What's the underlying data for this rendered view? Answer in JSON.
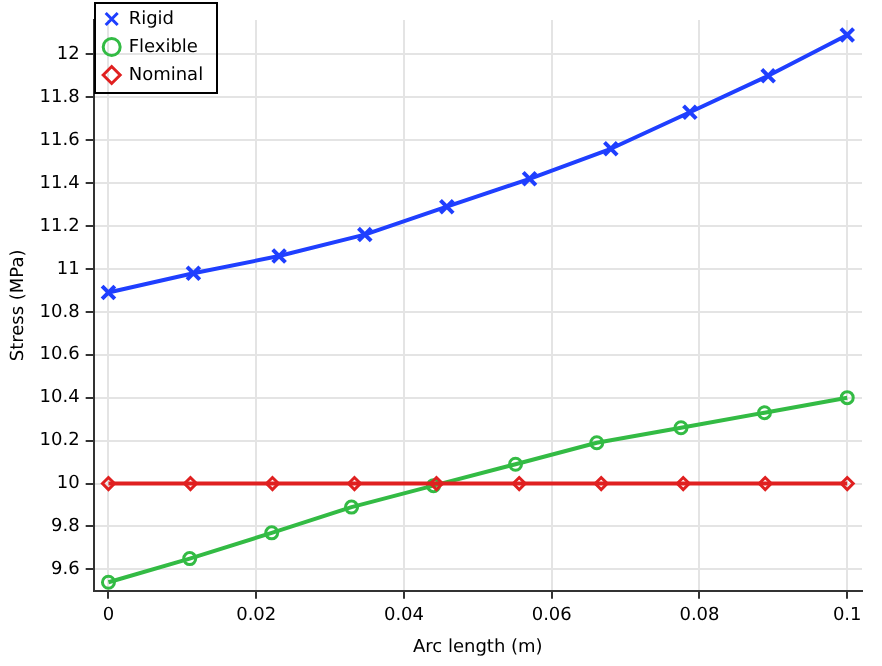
{
  "chart_data": {
    "type": "line",
    "xlabel": "Arc length (m)",
    "ylabel": "Stress (MPa)",
    "xlim": [
      -0.002,
      0.102
    ],
    "xticks": [
      0,
      0.02,
      0.04,
      0.06,
      0.08,
      0.1
    ],
    "ylim": [
      9.5,
      12.16
    ],
    "yticks": [
      9.6,
      9.8,
      10,
      10.2,
      10.4,
      10.6,
      10.8,
      11,
      11.2,
      11.4,
      11.6,
      11.8,
      12
    ],
    "grid": true,
    "legend": "top left",
    "line_style": "solid",
    "series": [
      {
        "name": "Rigid",
        "color": "#1f3fff",
        "marker": "cross",
        "x": [
          0,
          0.0115,
          0.0231,
          0.0347,
          0.0458,
          0.057,
          0.068,
          0.0787,
          0.0893,
          0.1
        ],
        "values": [
          10.89,
          10.98,
          11.06,
          11.16,
          11.29,
          11.42,
          11.56,
          11.73,
          11.9,
          12.09
        ]
      },
      {
        "name": "Flexible",
        "color": "#33bb44",
        "marker": "circle",
        "x": [
          0,
          0.011,
          0.0221,
          0.0329,
          0.044,
          0.0551,
          0.0661,
          0.0775,
          0.0888,
          0.1
        ],
        "values": [
          9.54,
          9.65,
          9.77,
          9.89,
          9.99,
          10.09,
          10.19,
          10.26,
          10.33,
          10.4
        ]
      },
      {
        "name": "Nominal",
        "color": "#e02020",
        "marker": "diamond",
        "x": [
          0,
          0.0111,
          0.0222,
          0.0333,
          0.0444,
          0.0556,
          0.0667,
          0.0778,
          0.0889,
          0.1
        ],
        "values": [
          10,
          10,
          10,
          10,
          10,
          10,
          10,
          10,
          10,
          10
        ]
      }
    ]
  }
}
